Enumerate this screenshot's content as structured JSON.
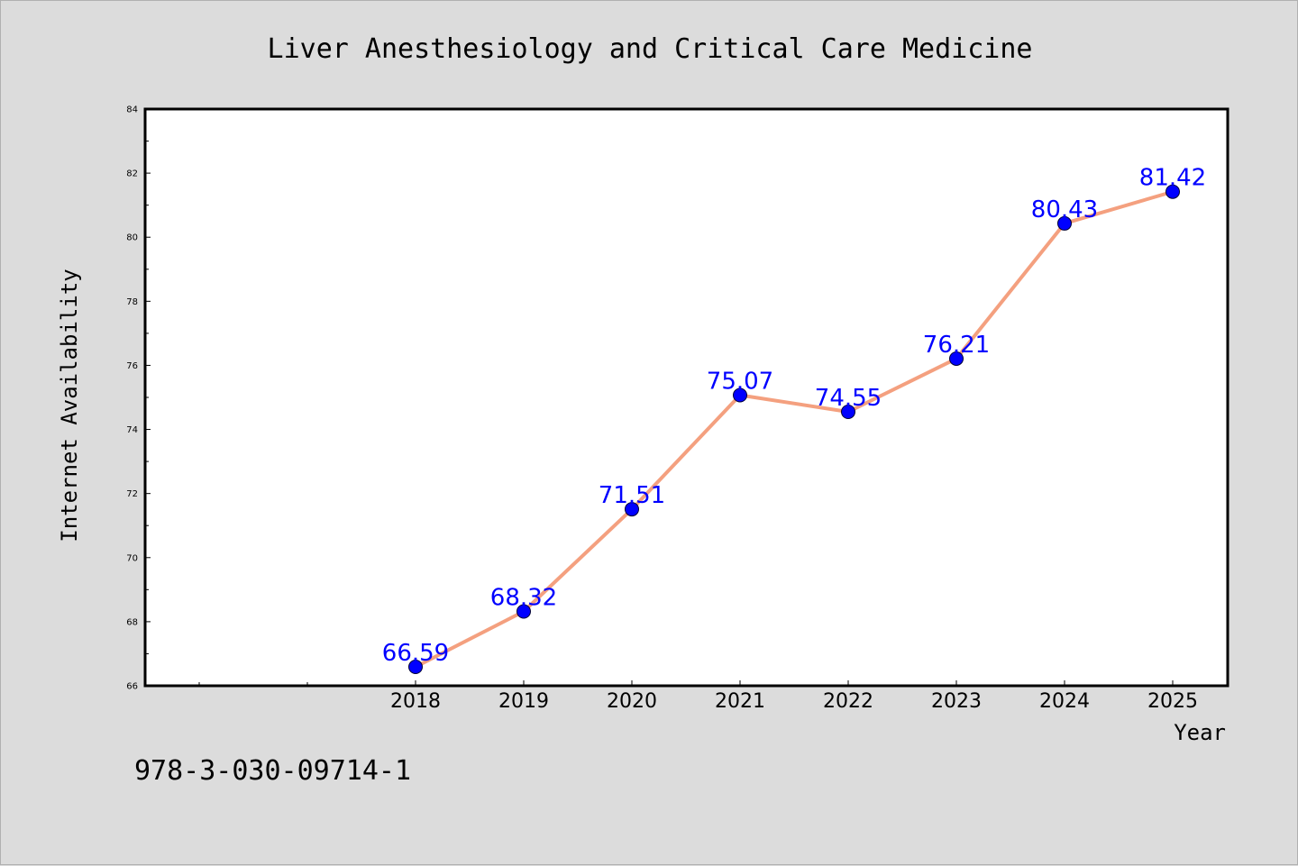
{
  "chart_data": {
    "type": "line",
    "title": "Liver Anesthesiology and Critical Care Medicine",
    "xlabel": "Year",
    "ylabel": "Internet Availability",
    "categories": [
      "2018",
      "2019",
      "2020",
      "2021",
      "2022",
      "2023",
      "2024",
      "2025"
    ],
    "series": [
      {
        "values": [
          66.59,
          68.32,
          71.51,
          75.07,
          74.55,
          76.21,
          80.43,
          81.42
        ],
        "labels": [
          "66.59",
          "68.32",
          "71.51",
          "75.07",
          "74.55",
          "76.21",
          "80.43",
          "81.42"
        ],
        "line_color": "#f4a07f",
        "marker_color": "#0000ff"
      }
    ],
    "ylim": [
      66,
      84
    ],
    "yticks": [
      "66",
      "68",
      "70",
      "72",
      "74",
      "76",
      "78",
      "80",
      "82",
      "84"
    ],
    "grid": false,
    "legend": "none"
  },
  "footnote": "978-3-030-09714-1",
  "colors": {
    "background": "#dcdcdc",
    "plot_background": "#ffffff",
    "line": "#f4a07f",
    "marker": "#0000ff",
    "data_label": "#0000ff"
  }
}
